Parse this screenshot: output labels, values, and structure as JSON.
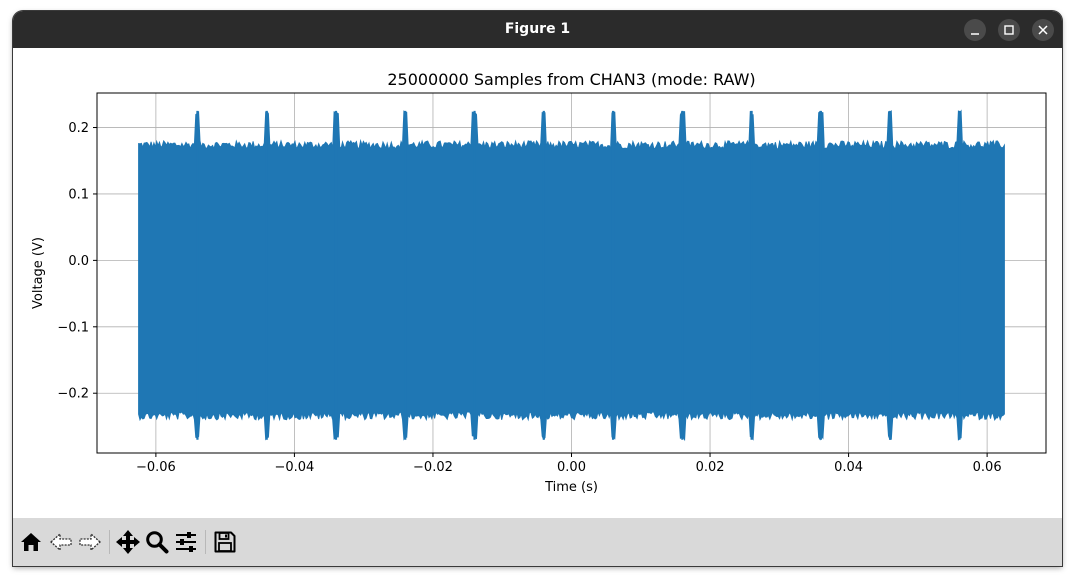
{
  "window": {
    "title": "Figure 1",
    "controls": [
      "minimize",
      "maximize",
      "close"
    ]
  },
  "toolbar": {
    "buttons": [
      {
        "name": "home",
        "icon": "home-icon"
      },
      {
        "name": "back",
        "icon": "back-arrow-icon"
      },
      {
        "name": "forward",
        "icon": "forward-arrow-icon"
      },
      {
        "name": "pan",
        "icon": "move-icon"
      },
      {
        "name": "zoom",
        "icon": "zoom-icon"
      },
      {
        "name": "configure-subplots",
        "icon": "sliders-icon"
      },
      {
        "name": "save",
        "icon": "save-icon"
      }
    ]
  },
  "colors": {
    "series": "#1f77b4",
    "titlebar": "#2b2b2b",
    "toolbar": "#d9d9d9",
    "grid": "#b0b0b0"
  },
  "chart_data": {
    "type": "line",
    "title": "25000000 Samples from CHAN3 (mode: RAW)",
    "xlabel": "Time (s)",
    "ylabel": "Voltage (V)",
    "xlim": [
      -0.0685,
      0.0685
    ],
    "ylim": [
      -0.29,
      0.252
    ],
    "grid": true,
    "x_ticks": [
      -0.06,
      -0.04,
      -0.02,
      0.0,
      0.02,
      0.04,
      0.06
    ],
    "x_tick_labels": [
      "−0.06",
      "−0.04",
      "−0.02",
      "0.00",
      "0.02",
      "0.04",
      "0.06"
    ],
    "y_ticks": [
      -0.2,
      -0.1,
      0.0,
      0.1,
      0.2
    ],
    "y_tick_labels": [
      "−0.2",
      "−0.1",
      "0.0",
      "0.1",
      "0.2"
    ],
    "series": [
      {
        "x_range": [
          -0.0625,
          0.0625
        ],
        "envelope_max": 0.18,
        "envelope_min": -0.24,
        "spike_max": 0.225,
        "spike_min": -0.27,
        "spike_times": [
          -0.054,
          -0.044,
          -0.034,
          -0.024,
          -0.014,
          -0.004,
          0.006,
          0.016,
          0.026,
          0.036,
          0.046,
          0.056
        ]
      }
    ]
  }
}
